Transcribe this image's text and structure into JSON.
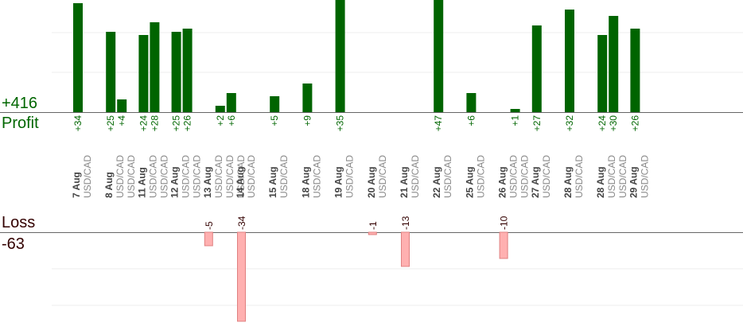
{
  "summary": {
    "profit_total": "+416",
    "profit_label": "Profit",
    "loss_label": "Loss",
    "loss_total": "-63"
  },
  "colors": {
    "profit_bar": "#006400",
    "loss_bar": "#ffb0b0",
    "loss_bar_border": "#e08080",
    "profit_text": "#006600",
    "loss_text": "#330000",
    "date_text": "#444444",
    "symbol_text": "#888888"
  },
  "chart_data": {
    "type": "bar",
    "title": "",
    "symbol": "USD/CAD",
    "profit_axis_max": 50,
    "loss_axis_max": 36,
    "days": [
      {
        "date": "7 Aug",
        "trades": [
          34
        ]
      },
      {
        "date": "8 Aug",
        "trades": [
          25,
          4
        ]
      },
      {
        "date": "11 Aug",
        "trades": [
          24,
          28
        ]
      },
      {
        "date": "12 Aug",
        "trades": [
          25,
          26
        ]
      },
      {
        "date": "13 Aug",
        "trades": [
          -5,
          2,
          6
        ]
      },
      {
        "date": "14 Aug",
        "trades": [
          -34
        ]
      },
      {
        "date": "15 Aug",
        "trades": [
          5
        ]
      },
      {
        "date": "18 Aug",
        "trades": [
          9
        ]
      },
      {
        "date": "19 Aug",
        "trades": [
          35
        ]
      },
      {
        "date": "20 Aug",
        "trades": [
          -1
        ]
      },
      {
        "date": "21 Aug",
        "trades": [
          -13
        ]
      },
      {
        "date": "22 Aug",
        "trades": [
          47
        ]
      },
      {
        "date": "25 Aug",
        "trades": [
          6
        ]
      },
      {
        "date": "26 Aug",
        "trades": [
          -10,
          1
        ]
      },
      {
        "date": "27 Aug",
        "trades": [
          27
        ]
      },
      {
        "date": "28 Aug",
        "trades": [
          32
        ]
      },
      {
        "date": "28 Aug",
        "trades": [
          24,
          30
        ]
      },
      {
        "date": "29 Aug",
        "trades": [
          26
        ]
      }
    ]
  }
}
